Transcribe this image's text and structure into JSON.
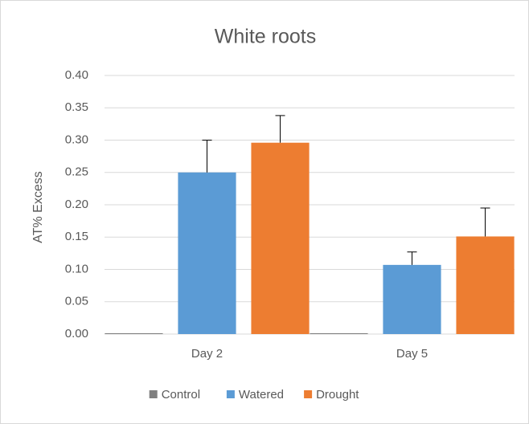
{
  "chart_data": {
    "type": "bar",
    "title": "White roots",
    "y_label": "AT% Excess",
    "categories": [
      "Day 2",
      "Day 5"
    ],
    "series": [
      {
        "name": "Control",
        "color": "#7f7f7f",
        "values": [
          0,
          0
        ]
      },
      {
        "name": "Watered",
        "color": "#5b9bd5",
        "values": [
          0.25,
          0.107
        ],
        "errors": [
          0.05,
          0.02
        ]
      },
      {
        "name": "Drought",
        "color": "#ed7d31",
        "values": [
          0.296,
          0.151
        ],
        "errors": [
          0.042,
          0.044
        ]
      }
    ],
    "ylim": [
      0,
      0.4
    ],
    "yticks": [
      {
        "value": 0,
        "label": "0.00"
      },
      {
        "value": 0.05,
        "label": "0.05"
      },
      {
        "value": 0.1,
        "label": "0.10"
      },
      {
        "value": 0.15,
        "label": "0.15"
      },
      {
        "value": 0.2,
        "label": "0.20"
      },
      {
        "value": 0.25,
        "label": "0.25"
      },
      {
        "value": 0.3,
        "label": "0.30"
      },
      {
        "value": 0.35,
        "label": "0.35"
      },
      {
        "value": 0.4,
        "label": "0.40"
      }
    ],
    "grid": true,
    "legend": "bottom"
  }
}
